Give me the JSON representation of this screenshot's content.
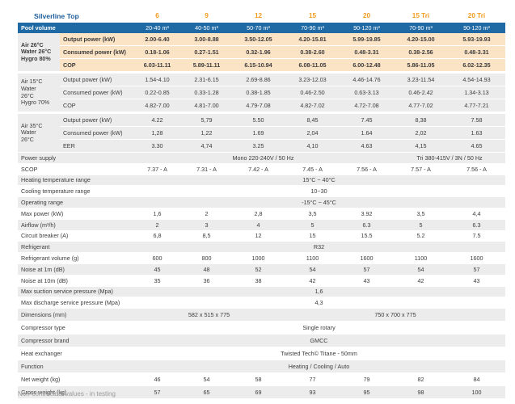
{
  "brand": "Silverline Top",
  "models": [
    "6",
    "9",
    "12",
    "15",
    "20",
    "15 Tri",
    "20 Tri"
  ],
  "pool_volume": {
    "label": "Pool volume",
    "values": [
      "20-40 m³",
      "40-50 m³",
      "50-70 m³",
      "70-90 m³",
      "90-120 m³",
      "70-90 m³",
      "90-120 m³"
    ]
  },
  "group1": {
    "condition": [
      "Air 26°C",
      "Water 26°C",
      "Hygro 80%"
    ],
    "rows": [
      {
        "label": "Output power (kW)",
        "values": [
          "2.00-6.40",
          "3.00-8.88",
          "3.50-12.05",
          "4.20-15.81",
          "5.99-19.85",
          "4.20-15.00",
          "5.93-19.93"
        ]
      },
      {
        "label": "Consumed power (kW)",
        "values": [
          "0.18-1.06",
          "0.27-1.51",
          "0.32-1.96",
          "0.38-2.60",
          "0.48-3.31",
          "0.38-2.56",
          "0.48-3.31"
        ]
      },
      {
        "label": "COP",
        "values": [
          "6.03-11.11",
          "5.89-11.11",
          "6.15-10.94",
          "6.08-11.05",
          "6.00-12.48",
          "5.86-11.05",
          "6.02-12.35"
        ]
      }
    ]
  },
  "group2": {
    "condition": [
      "Air 15°C",
      "Water",
      "26°C",
      "Hygro 70%"
    ],
    "rows": [
      {
        "label": "Output power (kW)",
        "values": [
          "1.54-4.10",
          "2.31-6.15",
          "2.69-8.86",
          "3.23-12.03",
          "4.46-14.76",
          "3.23-11.54",
          "4.54-14.93"
        ]
      },
      {
        "label": "Consumed power (kW)",
        "values": [
          "0.22-0.85",
          "0.33-1.28",
          "0.38-1.85",
          "0.46-2.50",
          "0.63-3.13",
          "0.46-2.42",
          "1.34-3.13"
        ]
      },
      {
        "label": "COP",
        "values": [
          "4.82-7.00",
          "4.81-7.00",
          "4.79-7.08",
          "4.82-7.02",
          "4.72-7.08",
          "4.77-7.02",
          "4.77-7.21"
        ]
      }
    ]
  },
  "group3": {
    "condition": [
      "Air 35°C",
      "Water",
      "26°C"
    ],
    "rows": [
      {
        "label": "Output power (kW)",
        "values": [
          "4.22",
          "5,79",
          "5.50",
          "8,45",
          "7.45",
          "8,38",
          "7.58"
        ]
      },
      {
        "label": "Consumed power (kW)",
        "values": [
          "1,28",
          "1,22",
          "1.69",
          "2,04",
          "1.64",
          "2,02",
          "1.63"
        ]
      },
      {
        "label": "EER",
        "values": [
          "3.30",
          "4,74",
          "3.25",
          "4,10",
          "4.63",
          "4,15",
          "4.65"
        ]
      }
    ]
  },
  "general": {
    "power_supply": {
      "label": "Power supply",
      "mono": "Mono 220-240V / 50 Hz",
      "tri": "Tri 380-415V / 3N / 50 Hz"
    },
    "scop": {
      "label": "SCOP",
      "values": [
        "7.37 - A",
        "7.31 - A",
        "7.42 - A",
        "7.45 - A",
        "7.56 - A",
        "7.57 - A",
        "7.56 - A"
      ]
    },
    "heating_temp": {
      "label": "Heating temperature range",
      "value": "15°C ~ 40°C"
    },
    "cooling_temp": {
      "label": "Cooling temperature range",
      "value": "10~30"
    },
    "operating_range": {
      "label": "Operating range",
      "value": "-15°C ~ 45°C"
    },
    "max_power": {
      "label": "Max power (kW)",
      "values": [
        "1,6",
        "2",
        "2,8",
        "3,5",
        "3.92",
        "3,5",
        "4,4"
      ]
    },
    "airflow": {
      "label": "Airflow (m³/h)",
      "values": [
        "2",
        "3",
        "4",
        "5",
        "6.3",
        "5",
        "6.3"
      ]
    },
    "breaker": {
      "label": "Circuit breaker (A)",
      "values": [
        "6,8",
        "8,5",
        "12",
        "15",
        "15.5",
        "5.2",
        "7.5"
      ]
    },
    "refrigerant": {
      "label": "Refrigerant",
      "value": "R32"
    },
    "ref_volume": {
      "label": "Refrigerant volume (g)",
      "values": [
        "600",
        "800",
        "1000",
        "1100",
        "1600",
        "1100",
        "1600"
      ]
    },
    "noise_1m": {
      "label": "Noise at 1m (dB)",
      "values": [
        "45",
        "48",
        "52",
        "54",
        "57",
        "54",
        "57"
      ]
    },
    "noise_10m": {
      "label": "Noise at 10m (dB)",
      "values": [
        "35",
        "36",
        "38",
        "42",
        "43",
        "42",
        "43"
      ]
    },
    "max_suction": {
      "label": "Max suction service pressure (Mpa)",
      "value": "1,6"
    },
    "max_discharge": {
      "label": "Max discharge service pressure (Mpa)",
      "value": "4,3"
    },
    "dimensions": {
      "label": "Dimensions (mm)",
      "small": "582 x 515 x 775",
      "large": "750 x 700 x 775"
    },
    "compressor_type": {
      "label": "Compressor type",
      "value": "Single rotary"
    },
    "compressor_brand": {
      "label": "Compressor brand",
      "value": "GMCC"
    },
    "heat_exchanger": {
      "label": "Heat exchanger",
      "value": "Twisted Tech© Titane - 50mm"
    },
    "function": {
      "label": "Function",
      "value": "Heating / Cooling / Auto"
    },
    "net_weight": {
      "label": "Net weight (kg)",
      "values": [
        "46",
        "54",
        "58",
        "77",
        "79",
        "82",
        "84"
      ]
    },
    "gross_weight": {
      "label": "Gross weight (kg)",
      "values": [
        "57",
        "65",
        "69",
        "93",
        "95",
        "98",
        "100"
      ]
    }
  },
  "footnote": "Non-contractual values - in testing",
  "colors": {
    "header_blue": "#1f6aa5",
    "model_orange": "#f39c1f",
    "brand_blue": "#1d5d9c",
    "highlight_peach": "#fbe3c5",
    "row_grey": "#ececec"
  }
}
